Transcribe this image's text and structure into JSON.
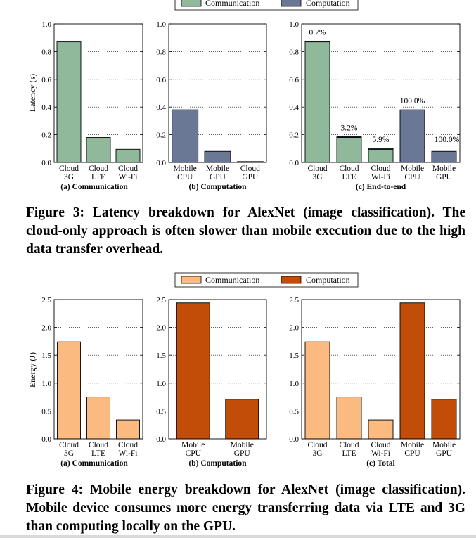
{
  "figures": [
    {
      "legend": {
        "comm_label": "Communication",
        "comp_label": "Computation"
      },
      "ylabel": "Latency (s)",
      "caption": "Figure 3: Latency breakdown for AlexNet (image classification). The cloud-only approach is often slower than mobile execution due to the high data transfer overhead."
    },
    {
      "legend": {
        "comm_label": "Communication",
        "comp_label": "Computation"
      },
      "ylabel": "Energy (J)",
      "caption": "Figure 4: Mobile energy breakdown for AlexNet (image classification). Mobile device consumes more energy transferring data via LTE and 3G than computing locally on the GPU."
    }
  ],
  "chart_data": [
    {
      "type": "bar",
      "title": "(a) Communication",
      "ylabel": "Latency (s)",
      "ylim": [
        0,
        1.0
      ],
      "yticks": [
        "0.0",
        "0.2",
        "0.4",
        "0.6",
        "0.8",
        "1.0"
      ],
      "grid": true,
      "categories": [
        [
          "Cloud",
          "3G"
        ],
        [
          "Cloud",
          "LTE"
        ],
        [
          "Cloud",
          "Wi-Fi"
        ]
      ],
      "values": [
        0.87,
        0.18,
        0.095
      ],
      "series_kind": [
        "comm",
        "comm",
        "comm"
      ],
      "colors": {
        "comm": "#8fb99a",
        "comp": "#6b7895"
      }
    },
    {
      "type": "bar",
      "title": "(b) Computation",
      "ylim": [
        0,
        1.0
      ],
      "yticks": [
        "0.0",
        "0.2",
        "0.4",
        "0.6",
        "0.8",
        "1.0"
      ],
      "grid": true,
      "categories": [
        [
          "Mobile",
          "CPU"
        ],
        [
          "Mobile",
          "GPU"
        ],
        [
          "Cloud",
          "GPU"
        ]
      ],
      "values": [
        0.38,
        0.08,
        0.006
      ],
      "series_kind": [
        "comp",
        "comp",
        "comp"
      ],
      "colors": {
        "comm": "#8fb99a",
        "comp": "#6b7895"
      }
    },
    {
      "type": "bar",
      "title": "(c) End-to-end",
      "ylim": [
        0,
        1.0
      ],
      "yticks": [
        "0.0",
        "0.2",
        "0.4",
        "0.6",
        "0.8",
        "1.0"
      ],
      "grid": true,
      "categories": [
        [
          "Cloud",
          "3G"
        ],
        [
          "Cloud",
          "LTE"
        ],
        [
          "Cloud",
          "Wi-Fi"
        ],
        [
          "Mobile",
          "CPU"
        ],
        [
          "Mobile",
          "GPU"
        ]
      ],
      "series": [
        {
          "name": "Communication",
          "values": [
            0.87,
            0.18,
            0.095,
            0,
            0
          ]
        },
        {
          "name": "Computation",
          "values": [
            0.006,
            0.006,
            0.006,
            0.38,
            0.08
          ]
        }
      ],
      "annotations": [
        "0.7%",
        "3.2%",
        "5.9%",
        "100.0%",
        "100.0%"
      ],
      "colors": {
        "comm": "#8fb99a",
        "comp": "#6b7895"
      }
    },
    {
      "type": "bar",
      "title": "(a) Communication",
      "ylabel": "Energy (J)",
      "ylim": [
        0,
        2.5
      ],
      "yticks": [
        "0.0",
        "0.5",
        "1.0",
        "1.5",
        "2.0",
        "2.5"
      ],
      "grid": true,
      "categories": [
        [
          "Cloud",
          "3G"
        ],
        [
          "Cloud",
          "LTE"
        ],
        [
          "Cloud",
          "Wi-Fi"
        ]
      ],
      "values": [
        1.74,
        0.75,
        0.34
      ],
      "series_kind": [
        "comm",
        "comm",
        "comm"
      ],
      "colors": {
        "comm": "#fbbb80",
        "comp": "#c24d08"
      }
    },
    {
      "type": "bar",
      "title": "(b) Computation",
      "ylim": [
        0,
        2.5
      ],
      "yticks": [
        "0.0",
        "0.5",
        "1.0",
        "1.5",
        "2.0",
        "2.5"
      ],
      "grid": true,
      "categories": [
        [
          "Mobile",
          "CPU"
        ],
        [
          "Mobile",
          "GPU"
        ]
      ],
      "values": [
        2.44,
        0.71
      ],
      "series_kind": [
        "comp",
        "comp"
      ],
      "colors": {
        "comm": "#fbbb80",
        "comp": "#c24d08"
      }
    },
    {
      "type": "bar",
      "title": "(c) Total",
      "ylim": [
        0,
        2.5
      ],
      "yticks": [
        "0.0",
        "0.5",
        "1.0",
        "1.5",
        "2.0",
        "2.5"
      ],
      "grid": true,
      "categories": [
        [
          "Cloud",
          "3G"
        ],
        [
          "Cloud",
          "LTE"
        ],
        [
          "Cloud",
          "Wi-Fi"
        ],
        [
          "Mobile",
          "CPU"
        ],
        [
          "Mobile",
          "GPU"
        ]
      ],
      "values": [
        1.74,
        0.75,
        0.34,
        2.44,
        0.71
      ],
      "series_kind": [
        "comm",
        "comm",
        "comm",
        "comp",
        "comp"
      ],
      "colors": {
        "comm": "#fbbb80",
        "comp": "#c24d08"
      }
    }
  ]
}
